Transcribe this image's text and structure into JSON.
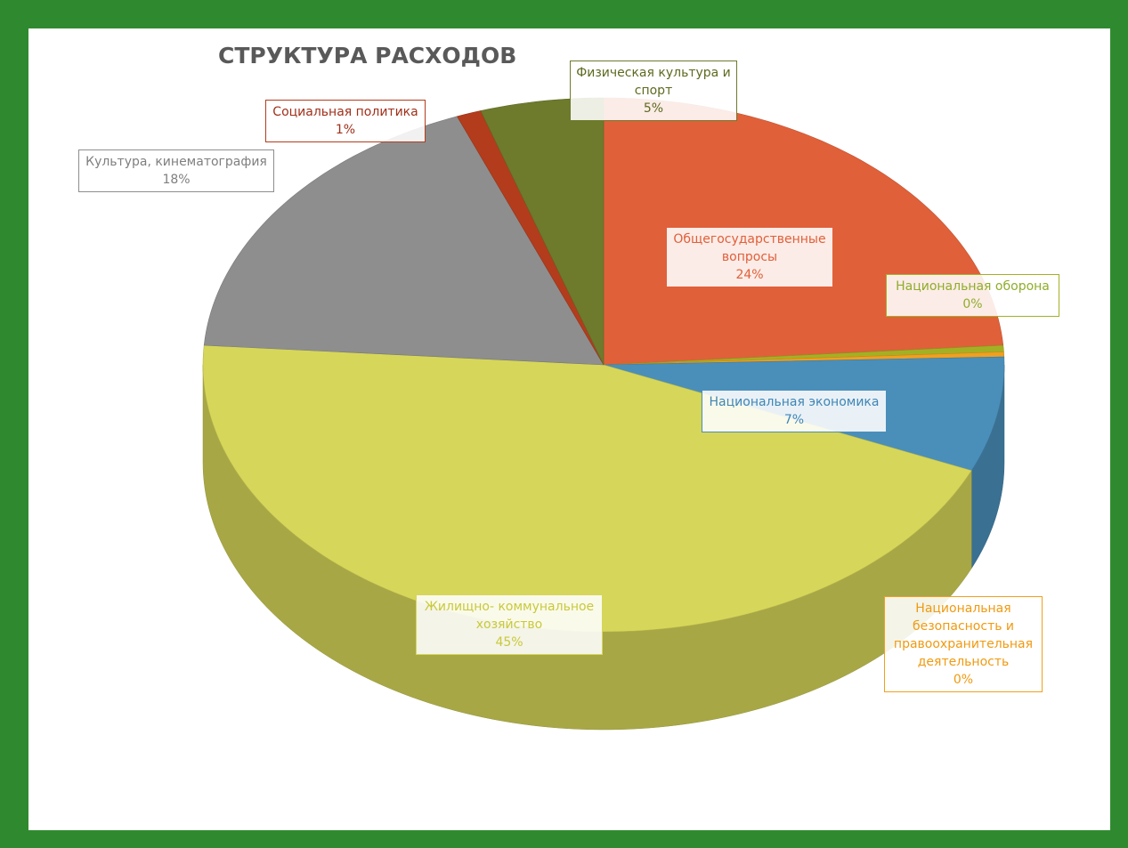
{
  "chart_data": {
    "type": "pie3d",
    "title": "СТРУКТУРА РАСХОДОВ",
    "categories": [
      "Общегосударственные вопросы",
      "Национальная оборона",
      "Национальная безопасность и правоохранительная деятельность",
      "Национальная экономика",
      "Жилищно- коммунальное хозяйство",
      "Культура, кинематография",
      "Социальная политика",
      "Физическая культура и спорт"
    ],
    "values": [
      24,
      0.4,
      0.3,
      7,
      45,
      18,
      1,
      5
    ],
    "value_labels": [
      "24%",
      "0%",
      "0%",
      "7%",
      "45%",
      "18%",
      "1%",
      "5%"
    ],
    "colors": [
      "#e0603a",
      "#a4b024",
      "#f0a020",
      "#4a8fba",
      "#d6d65a",
      "#8e8e8e",
      "#b33c1c",
      "#6e7a2c"
    ]
  }
}
